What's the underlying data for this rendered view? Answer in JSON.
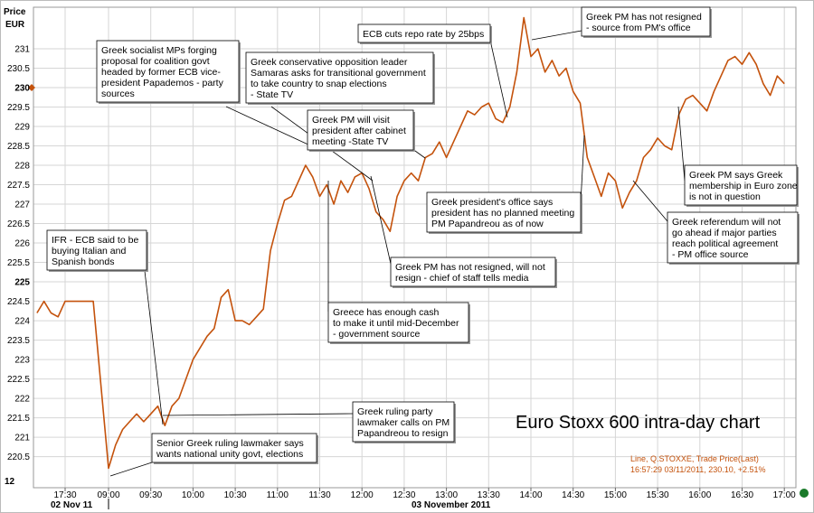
{
  "chart_data": {
    "type": "line",
    "title": "Euro Stoxx 600 intra-day chart",
    "y_axis_label": [
      "Price",
      "EUR"
    ],
    "y_axis_bottom_text": "12",
    "dates": [
      "02 Nov 11",
      "03 November 2011"
    ],
    "info_lines": [
      "Line, Q.STOXXE, Trade Price(Last)",
      "16:57:29 03/11/2011, 230.10, +2.51%"
    ],
    "color": "#c4520c",
    "grid": true,
    "ylim": [
      219.7,
      232.07
    ],
    "yticks": [
      220.5,
      221,
      221.5,
      222,
      222.5,
      223,
      223.5,
      224,
      224.5,
      225,
      225.5,
      226,
      226.5,
      227,
      227.5,
      228,
      228.5,
      229,
      229.5,
      230,
      230.5,
      231
    ],
    "xticks": [
      "17:30",
      "09:00",
      "09:30",
      "10:00",
      "10:30",
      "11:00",
      "11:30",
      "12:00",
      "12:30",
      "13:00",
      "13:30",
      "14:00",
      "14:30",
      "15:00",
      "15:30",
      "16:00",
      "16:30",
      "17:00"
    ],
    "x": [
      "17:10",
      "17:15",
      "17:20",
      "17:25",
      "17:30",
      "17:35",
      "17:40",
      "17:45",
      "17:50",
      "09:00",
      "09:05",
      "09:10",
      "09:15",
      "09:20",
      "09:25",
      "09:30",
      "09:35",
      "09:40",
      "09:45",
      "09:50",
      "09:55",
      "10:00",
      "10:05",
      "10:10",
      "10:15",
      "10:20",
      "10:25",
      "10:30",
      "10:35",
      "10:40",
      "10:45",
      "10:50",
      "10:55",
      "11:00",
      "11:05",
      "11:10",
      "11:15",
      "11:20",
      "11:25",
      "11:30",
      "11:35",
      "11:40",
      "11:45",
      "11:50",
      "11:55",
      "12:00",
      "12:05",
      "12:10",
      "12:15",
      "12:20",
      "12:25",
      "12:30",
      "12:35",
      "12:40",
      "12:45",
      "12:50",
      "12:55",
      "13:00",
      "13:05",
      "13:10",
      "13:15",
      "13:20",
      "13:25",
      "13:30",
      "13:35",
      "13:40",
      "13:45",
      "13:50",
      "13:55",
      "14:00",
      "14:05",
      "14:10",
      "14:15",
      "14:20",
      "14:25",
      "14:30",
      "14:35",
      "14:40",
      "14:45",
      "14:50",
      "14:55",
      "15:00",
      "15:05",
      "15:10",
      "15:15",
      "15:20",
      "15:25",
      "15:30",
      "15:35",
      "15:40",
      "15:45",
      "15:50",
      "15:55",
      "16:00",
      "16:05",
      "16:10",
      "16:15",
      "16:20",
      "16:25",
      "16:30",
      "16:35",
      "16:40",
      "16:45",
      "16:50",
      "16:55",
      "17:00"
    ],
    "values": [
      224.2,
      224.5,
      224.2,
      224.1,
      224.5,
      224.5,
      224.5,
      224.5,
      224.5,
      220.2,
      220.8,
      221.2,
      221.4,
      221.6,
      221.4,
      221.6,
      221.8,
      221.3,
      221.8,
      222.0,
      222.5,
      223.0,
      223.3,
      223.6,
      223.8,
      224.6,
      224.8,
      224.0,
      224.0,
      223.9,
      224.1,
      224.3,
      225.8,
      226.5,
      227.1,
      227.2,
      227.6,
      228.0,
      227.7,
      227.2,
      227.5,
      227.0,
      227.6,
      227.3,
      227.7,
      227.8,
      227.4,
      226.8,
      226.6,
      226.3,
      227.2,
      227.6,
      227.8,
      227.6,
      228.2,
      228.3,
      228.6,
      228.2,
      228.6,
      229.0,
      229.4,
      229.3,
      229.5,
      229.6,
      229.2,
      229.1,
      229.5,
      230.4,
      231.8,
      230.8,
      231.0,
      230.4,
      230.7,
      230.3,
      230.5,
      229.9,
      229.6,
      228.2,
      227.7,
      227.2,
      227.8,
      227.6,
      226.9,
      227.3,
      227.6,
      228.2,
      228.4,
      228.7,
      228.5,
      228.4,
      229.3,
      229.7,
      229.8,
      229.6,
      229.4,
      229.9,
      230.3,
      230.7,
      230.8,
      230.6,
      230.9,
      230.6,
      230.1,
      229.8,
      230.3,
      230.1
    ],
    "annotations": [
      {
        "lines": [
          "Greek socialist MPs forging",
          "proposal for coalition govt",
          "headed by former ECB vice-",
          "president Papademos - party",
          "sources"
        ]
      },
      {
        "lines": [
          "Greek conservative opposition leader",
          "Samaras asks for transitional government",
          "to take country to snap elections",
          "- State TV"
        ]
      },
      {
        "lines": [
          "Greek PM will visit",
          "president after cabinet",
          "meeting  -State TV"
        ]
      },
      {
        "lines": [
          "ECB cuts repo rate by 25bps"
        ]
      },
      {
        "lines": [
          "Greek PM has not resigned",
          "- source from PM's office"
        ]
      },
      {
        "lines": [
          "Greek president's office says",
          "president has no planned meeting",
          "PM Papandreou as of now"
        ]
      },
      {
        "lines": [
          "Greek PM says Greek",
          "membership in Euro zone",
          "is not in question"
        ]
      },
      {
        "lines": [
          "Greek referendum will not",
          "go ahead if major parties",
          "reach political agreement",
          "- PM office source"
        ]
      },
      {
        "lines": [
          "Greek PM has not resigned, will not",
          "resign - chief of staff tells media"
        ]
      },
      {
        "lines": [
          "Greece has enough cash",
          "to make it until mid-December",
          "- government source"
        ]
      },
      {
        "lines": [
          "IFR - ECB said to be",
          "buying Italian and",
          "Spanish bonds"
        ]
      },
      {
        "lines": [
          "Greek ruling party",
          "lawmaker calls on PM",
          "Papandreou to resign"
        ]
      },
      {
        "lines": [
          "Senior Greek ruling lawmaker says",
          "wants national unity govt, elections"
        ]
      }
    ]
  }
}
